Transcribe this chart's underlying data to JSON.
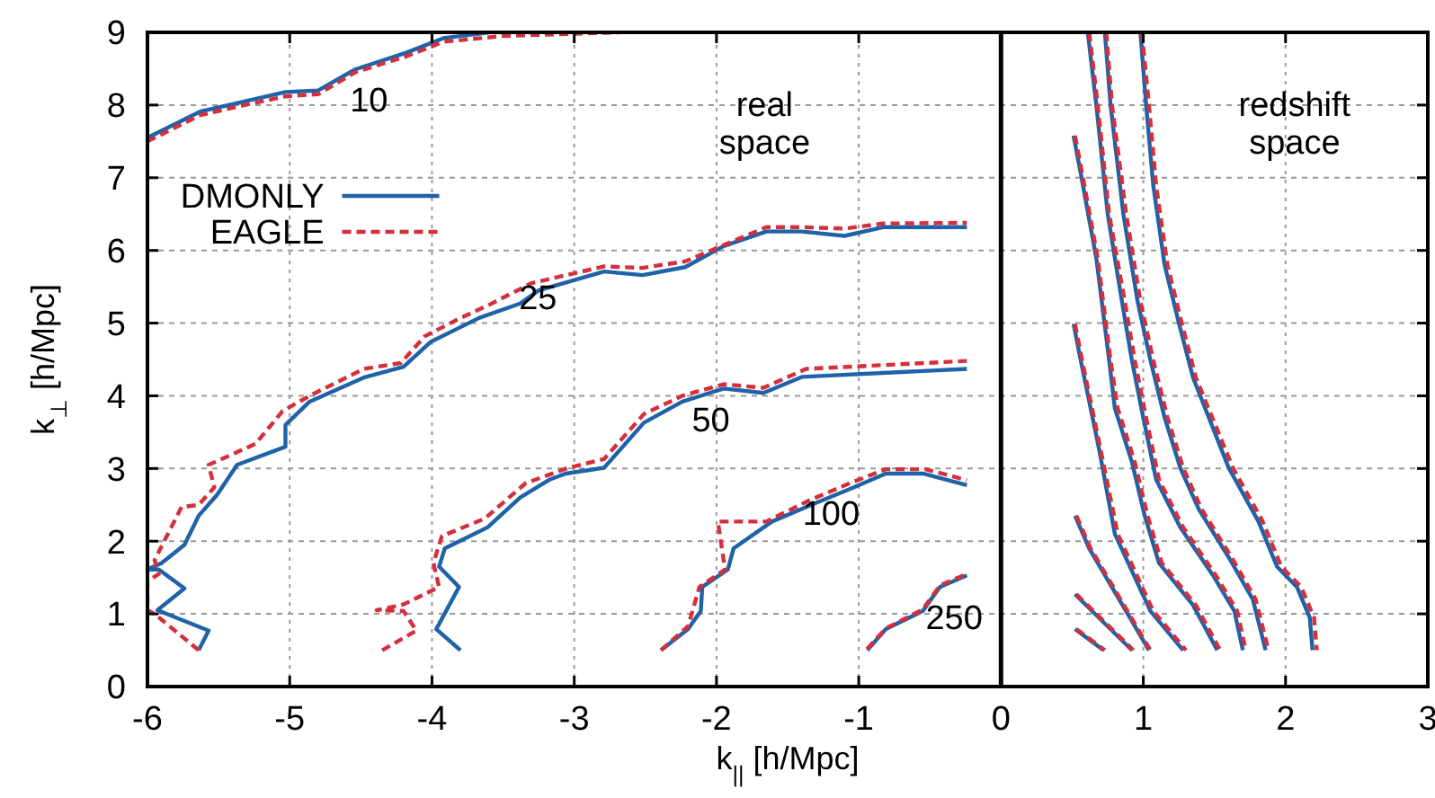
{
  "chart_data": {
    "type": "line",
    "xlabel": "k$_{||}$ [h/Mpc]",
    "ylabel": "k$_{⊥}$ [h/Mpc]",
    "xlim": [
      -6,
      3
    ],
    "ylim": [
      0,
      9
    ],
    "xticks": [
      -6,
      -5,
      -4,
      -3,
      -2,
      -1,
      0,
      1,
      2,
      3
    ],
    "yticks": [
      0,
      1,
      2,
      3,
      4,
      5,
      6,
      7,
      8,
      9
    ],
    "grid": true,
    "legend": "top left",
    "marker": "none",
    "ref_lines": [
      {
        "axis": "x",
        "value": 0,
        "color": "#000000",
        "line_style": "solid"
      }
    ],
    "annotations": [
      "10",
      "25",
      "50",
      "100",
      "250",
      "real space",
      "redshift space"
    ],
    "series": [
      {
        "name": "DMONLY",
        "color": "#1f62a8",
        "line_style": "solid",
        "x": [
          -6.0,
          -5.63,
          -5.27,
          -5.03,
          -4.8,
          -4.54,
          -4.18,
          -3.92,
          -3.67,
          -3.6
        ],
        "values": [
          7.55,
          7.91,
          8.07,
          8.18,
          8.2,
          8.49,
          8.72,
          8.92,
          8.98,
          9.0
        ]
      },
      {
        "name": "EAGLE",
        "color": "#d42f3c",
        "line_style": "dashed",
        "x": [
          -6.0,
          -5.63,
          -5.27,
          -5.03,
          -4.8,
          -4.54,
          -4.18,
          -3.92,
          -3.5,
          -2.68
        ],
        "values": [
          7.5,
          7.86,
          8.02,
          8.12,
          8.15,
          8.45,
          8.67,
          8.87,
          8.95,
          9.0
        ]
      },
      {
        "color": "#1f62a8",
        "line_style": "solid",
        "x": [
          -5.64,
          -5.57,
          -5.93,
          -5.74,
          -5.92,
          -6.0,
          -5.9,
          -5.74,
          -5.64,
          -5.51,
          -5.37,
          -5.03,
          -5.03,
          -4.86,
          -4.48,
          -4.2,
          -4.01,
          -3.67,
          -3.38,
          -3.25,
          -2.79,
          -2.52,
          -2.22,
          -1.95,
          -1.65,
          -1.4,
          -1.1,
          -0.83,
          -0.24
        ],
        "values": [
          0.5,
          0.77,
          1.05,
          1.35,
          1.61,
          1.61,
          1.7,
          1.95,
          2.35,
          2.64,
          3.05,
          3.3,
          3.6,
          3.92,
          4.25,
          4.4,
          4.74,
          5.07,
          5.27,
          5.45,
          5.71,
          5.66,
          5.77,
          6.06,
          6.26,
          6.26,
          6.2,
          6.32,
          6.32
        ]
      },
      {
        "color": "#d42f3c",
        "line_style": "dashed",
        "x": [
          -5.64,
          -5.95,
          -6.0,
          -6.0,
          -5.92,
          -5.95,
          -5.76,
          -5.64,
          -5.53,
          -5.57,
          -5.24,
          -5.05,
          -4.86,
          -4.48,
          -4.22,
          -4.05,
          -3.8,
          -3.6,
          -3.3,
          -2.79,
          -2.52,
          -2.22,
          -1.65,
          -1.4,
          -1.1,
          -0.83,
          -0.24
        ],
        "values": [
          0.5,
          1.0,
          1.05,
          1.45,
          1.55,
          1.74,
          2.47,
          2.5,
          2.74,
          3.05,
          3.34,
          3.79,
          4.0,
          4.37,
          4.45,
          4.82,
          5.07,
          5.25,
          5.55,
          5.78,
          5.76,
          5.85,
          6.32,
          6.32,
          6.3,
          6.37,
          6.38
        ]
      },
      {
        "color": "#1f62a8",
        "line_style": "solid",
        "x": [
          -3.8,
          -3.97,
          -3.81,
          -3.95,
          -3.91,
          -3.61,
          -3.38,
          -3.17,
          -3.06,
          -2.79,
          -2.51,
          -2.24,
          -1.95,
          -1.67,
          -1.4,
          -0.24
        ],
        "values": [
          0.5,
          0.79,
          1.37,
          1.65,
          1.9,
          2.19,
          2.6,
          2.85,
          2.93,
          3.01,
          3.63,
          3.92,
          4.1,
          4.04,
          4.26,
          4.37
        ]
      },
      {
        "color": "#d42f3c",
        "line_style": "dashed",
        "x": [
          -4.35,
          -4.11,
          -4.2,
          -4.39,
          -4.2,
          -3.95,
          -3.99,
          -3.93,
          -3.63,
          -3.34,
          -3.04,
          -2.79,
          -2.51,
          -2.24,
          -1.95,
          -1.67,
          -1.37,
          -0.24
        ],
        "values": [
          0.5,
          0.77,
          1.04,
          1.05,
          1.13,
          1.37,
          1.7,
          2.07,
          2.31,
          2.8,
          3.01,
          3.13,
          3.75,
          4.0,
          4.16,
          4.11,
          4.37,
          4.48
        ]
      },
      {
        "color": "#1f62a8",
        "line_style": "solid",
        "x": [
          -2.39,
          -2.2,
          -2.11,
          -2.1,
          -1.92,
          -1.88,
          -1.61,
          -1.31,
          -1.06,
          -0.81,
          -0.55,
          -0.24
        ],
        "values": [
          0.5,
          0.79,
          1.04,
          1.37,
          1.61,
          1.9,
          2.27,
          2.52,
          2.72,
          2.93,
          2.93,
          2.77
        ]
      },
      {
        "color": "#d42f3c",
        "line_style": "dashed",
        "x": [
          -2.39,
          -2.2,
          -2.12,
          -1.94,
          -1.99,
          -1.65,
          -1.35,
          -1.06,
          -0.81,
          -0.53,
          -0.24
        ],
        "values": [
          0.5,
          0.83,
          1.37,
          1.61,
          2.27,
          2.27,
          2.56,
          2.8,
          2.99,
          2.99,
          2.84
        ]
      },
      {
        "color": "#1f62a8",
        "line_style": "solid",
        "x": [
          -0.94,
          -0.81,
          -0.55,
          -0.43,
          -0.24
        ],
        "values": [
          0.5,
          0.79,
          1.04,
          1.37,
          1.53
        ]
      },
      {
        "color": "#d42f3c",
        "line_style": "dashed",
        "x": [
          -0.94,
          -0.81,
          -0.55,
          -0.43,
          -0.24
        ],
        "values": [
          0.52,
          0.8,
          1.06,
          1.39,
          1.55
        ]
      },
      {
        "color": "#1f62a8",
        "line_style": "solid",
        "x": [
          0.52,
          0.72
        ],
        "values": [
          0.79,
          0.5
        ]
      },
      {
        "color": "#d42f3c",
        "line_style": "dashed",
        "x": [
          0.53,
          0.73
        ],
        "values": [
          0.79,
          0.5
        ]
      },
      {
        "color": "#1f62a8",
        "line_style": "solid",
        "x": [
          0.52,
          0.92
        ],
        "values": [
          1.27,
          0.5
        ]
      },
      {
        "color": "#d42f3c",
        "line_style": "dashed",
        "x": [
          0.53,
          0.93
        ],
        "values": [
          1.27,
          0.5
        ]
      },
      {
        "color": "#1f62a8",
        "line_style": "solid",
        "x": [
          0.52,
          0.62,
          0.8,
          0.92,
          1.04
        ],
        "values": [
          2.35,
          1.9,
          1.3,
          0.9,
          0.5
        ]
      },
      {
        "color": "#d42f3c",
        "line_style": "dashed",
        "x": [
          0.53,
          0.63,
          0.81,
          0.93,
          1.05
        ],
        "values": [
          2.35,
          1.9,
          1.3,
          0.9,
          0.5
        ]
      },
      {
        "color": "#1f62a8",
        "line_style": "solid",
        "x": [
          0.51,
          0.56,
          0.69,
          0.8,
          1.05,
          1.28
        ],
        "values": [
          4.99,
          4.49,
          3.26,
          2.1,
          1.04,
          0.5
        ]
      },
      {
        "color": "#d42f3c",
        "line_style": "dashed",
        "x": [
          0.52,
          0.57,
          0.7,
          0.82,
          1.07,
          1.3
        ],
        "values": [
          4.99,
          4.49,
          3.26,
          2.1,
          1.04,
          0.5
        ]
      },
      {
        "color": "#1f62a8",
        "line_style": "solid",
        "x": [
          0.51,
          0.57,
          0.67,
          0.76,
          0.8,
          0.92,
          1.01,
          1.11,
          1.35,
          1.52
        ],
        "values": [
          7.58,
          6.96,
          5.89,
          4.49,
          3.83,
          3.09,
          2.35,
          1.7,
          1.12,
          0.5
        ]
      },
      {
        "color": "#d42f3c",
        "line_style": "dashed",
        "x": [
          0.52,
          0.58,
          0.68,
          0.77,
          0.82,
          0.94,
          1.03,
          1.13,
          1.37,
          1.54
        ],
        "values": [
          7.58,
          6.96,
          5.89,
          4.49,
          3.83,
          3.09,
          2.35,
          1.7,
          1.12,
          0.5
        ]
      },
      {
        "color": "#1f62a8",
        "line_style": "solid",
        "x": [
          0.61,
          0.67,
          0.75,
          0.85,
          0.92,
          1.0,
          1.09,
          1.26,
          1.49,
          1.64,
          1.7
        ],
        "values": [
          9.0,
          8.0,
          6.5,
          5.3,
          4.49,
          3.7,
          2.85,
          2.19,
          1.53,
          1.04,
          0.5
        ]
      },
      {
        "color": "#d42f3c",
        "line_style": "dashed",
        "x": [
          0.62,
          0.68,
          0.76,
          0.87,
          0.94,
          1.02,
          1.11,
          1.28,
          1.51,
          1.66,
          1.72
        ],
        "values": [
          9.0,
          8.0,
          6.5,
          5.3,
          4.49,
          3.7,
          2.85,
          2.19,
          1.53,
          1.04,
          0.5
        ]
      },
      {
        "color": "#1f62a8",
        "line_style": "solid",
        "x": [
          0.73,
          0.77,
          0.86,
          0.96,
          1.05,
          1.15,
          1.26,
          1.39,
          1.6,
          1.77,
          1.86
        ],
        "values": [
          9.0,
          8.0,
          6.5,
          5.3,
          4.49,
          3.7,
          3.01,
          2.44,
          1.78,
          1.2,
          0.5
        ]
      },
      {
        "color": "#d42f3c",
        "line_style": "dashed",
        "x": [
          0.74,
          0.78,
          0.88,
          0.98,
          1.07,
          1.17,
          1.28,
          1.41,
          1.62,
          1.79,
          1.88
        ],
        "values": [
          9.0,
          8.0,
          6.5,
          5.3,
          4.49,
          3.7,
          3.01,
          2.44,
          1.78,
          1.2,
          0.5
        ]
      },
      {
        "color": "#1f62a8",
        "line_style": "solid",
        "x": [
          0.98,
          1.02,
          1.07,
          1.15,
          1.25,
          1.35,
          1.6,
          1.81,
          1.94,
          2.08,
          2.17,
          2.19
        ],
        "values": [
          9.0,
          8.0,
          6.9,
          5.8,
          5.0,
          4.25,
          3.01,
          2.27,
          1.65,
          1.37,
          0.95,
          0.5
        ]
      },
      {
        "color": "#d42f3c",
        "line_style": "dashed",
        "x": [
          0.99,
          1.04,
          1.09,
          1.17,
          1.27,
          1.37,
          1.63,
          1.84,
          1.97,
          2.11,
          2.2,
          2.22
        ],
        "values": [
          9.0,
          8.0,
          6.9,
          5.8,
          5.0,
          4.25,
          3.01,
          2.27,
          1.65,
          1.37,
          0.95,
          0.5
        ]
      }
    ]
  }
}
